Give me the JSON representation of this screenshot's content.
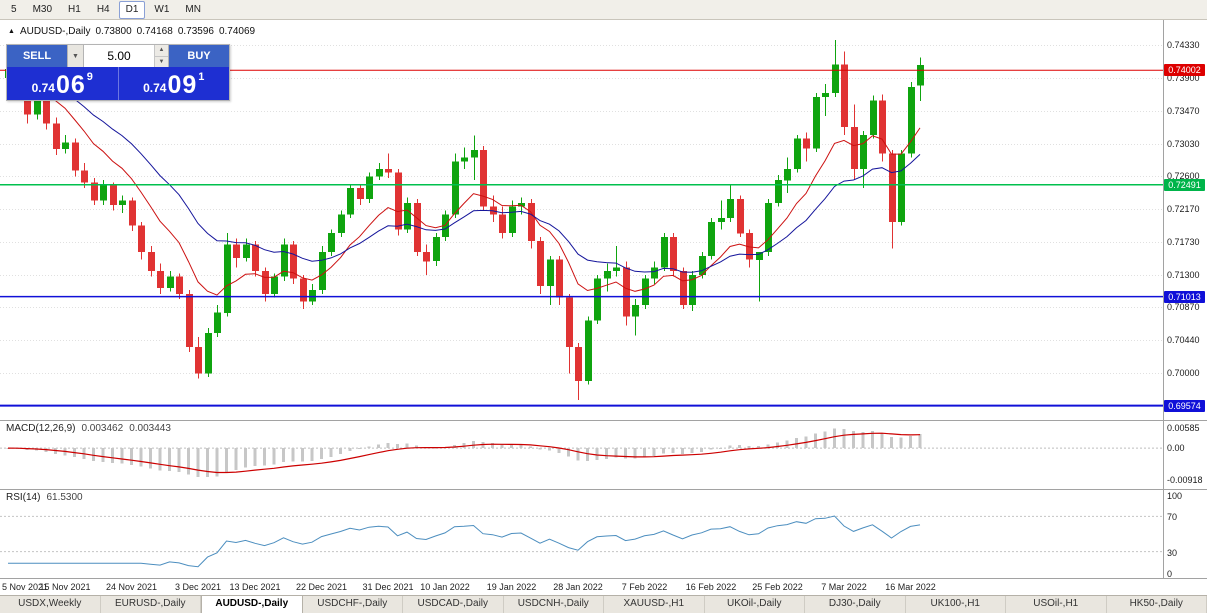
{
  "toolbar": {
    "timeframes": [
      {
        "label": "5",
        "active": false
      },
      {
        "label": "M30",
        "active": false
      },
      {
        "label": "H1",
        "active": false
      },
      {
        "label": "H4",
        "active": false
      },
      {
        "label": "D1",
        "active": true
      },
      {
        "label": "W1",
        "active": false
      },
      {
        "label": "MN",
        "active": false
      }
    ]
  },
  "chart_header": {
    "marker": "▲",
    "symbol": "AUDUSD-,Daily",
    "open": "0.73800",
    "high": "0.74168",
    "low": "0.73596",
    "close": "0.74069"
  },
  "trade_panel": {
    "sell_label": "SELL",
    "buy_label": "BUY",
    "volume": "5.00",
    "dropdown_icon": "▼",
    "spin_up": "▲",
    "spin_down": "▼",
    "sell_price": {
      "prefix": "0.74",
      "big": "06",
      "sup": "9"
    },
    "buy_price": {
      "prefix": "0.74",
      "big": "09",
      "sup": "1"
    }
  },
  "price_scale": {
    "ticks": [
      "0.74330",
      "0.73900",
      "0.73470",
      "0.73030",
      "0.72600",
      "0.72170",
      "0.71730",
      "0.71300",
      "0.70870",
      "0.70440",
      "0.70000"
    ],
    "badges": [
      {
        "value": "0.74002",
        "color": "#dd0000"
      },
      {
        "value": "0.72491",
        "color": "#00b44a"
      },
      {
        "value": "0.71013",
        "color": "#1010d8"
      },
      {
        "value": "0.69574",
        "color": "#1010d8"
      }
    ]
  },
  "indicators": {
    "macd": {
      "label": "MACD(12,26,9)",
      "value_main": "0.003462",
      "value_signal": "0.003443",
      "ticks": [
        "0.00585",
        "0.00",
        "-0.00918"
      ]
    },
    "rsi": {
      "label": "RSI(14)",
      "value": "61.5300",
      "ticks": [
        "100",
        "70",
        "30",
        "0"
      ],
      "levels": [
        70,
        30
      ]
    }
  },
  "time_axis": {
    "labels": [
      "5 Nov 2021",
      "15 Nov 2021",
      "24 Nov 2021",
      "3 Dec 2021",
      "13 Dec 2021",
      "22 Dec 2021",
      "31 Dec 2021",
      "10 Jan 2022",
      "19 Jan 2022",
      "28 Jan 2022",
      "7 Feb 2022",
      "16 Feb 2022",
      "25 Feb 2022",
      "7 Mar 2022",
      "16 Mar 2022"
    ],
    "indices": [
      0,
      6,
      13,
      20,
      26,
      33,
      40,
      46,
      53,
      60,
      67,
      74,
      81,
      88,
      95
    ]
  },
  "tabs": [
    {
      "label": "USDX,Weekly",
      "active": false
    },
    {
      "label": "EURUSD-,Daily",
      "active": false
    },
    {
      "label": "AUDUSD-,Daily",
      "active": true
    },
    {
      "label": "USDCHF-,Daily",
      "active": false
    },
    {
      "label": "USDCAD-,Daily",
      "active": false
    },
    {
      "label": "USDCNH-,Daily",
      "active": false
    },
    {
      "label": "XAUUSD-,H1",
      "active": false
    },
    {
      "label": "UKOil-,Daily",
      "active": false
    },
    {
      "label": "DJ30-,Daily",
      "active": false
    },
    {
      "label": "UK100-,H1",
      "active": false
    },
    {
      "label": "USOil-,H1",
      "active": false
    },
    {
      "label": "HK50-,Daily",
      "active": false
    }
  ],
  "chart_data": {
    "type": "candlestick",
    "symbol": "AUDUSD-",
    "timeframe": "Daily",
    "format": "ohlc",
    "y_range": [
      0.6941,
      0.746
    ],
    "candle_colors": {
      "up": "#0fa40f",
      "down": "#e03333"
    },
    "moving_averages": [
      {
        "period": 10,
        "color": "#cc1111"
      },
      {
        "period": 21,
        "color": "#15159b"
      }
    ],
    "overlays": [
      {
        "type": "hline",
        "price": 0.74002,
        "color": "#dd0000",
        "width": 1
      },
      {
        "type": "hline",
        "price": 0.72491,
        "color": "#00c04e",
        "width": 1.5
      },
      {
        "type": "hline",
        "price": 0.71013,
        "color": "#1010d8",
        "width": 1.5
      },
      {
        "type": "hline",
        "price": 0.69574,
        "color": "#1010d8",
        "width": 2
      }
    ],
    "macd": {
      "fast": 12,
      "slow": 26,
      "signal": 9,
      "current": 0.003462,
      "current_signal": 0.003443
    },
    "rsi": {
      "period": 14,
      "current": 61.53
    },
    "candles": [
      [
        0.739,
        0.7408,
        0.738,
        0.7402
      ],
      [
        0.7402,
        0.741,
        0.7372,
        0.738
      ],
      [
        0.738,
        0.7388,
        0.733,
        0.7342
      ],
      [
        0.7342,
        0.7372,
        0.7335,
        0.7368
      ],
      [
        0.7368,
        0.7375,
        0.7322,
        0.733
      ],
      [
        0.733,
        0.7338,
        0.7288,
        0.7296
      ],
      [
        0.7296,
        0.7315,
        0.729,
        0.7305
      ],
      [
        0.7305,
        0.731,
        0.726,
        0.7268
      ],
      [
        0.7268,
        0.7278,
        0.7245,
        0.7252
      ],
      [
        0.7252,
        0.7258,
        0.7222,
        0.7228
      ],
      [
        0.7228,
        0.7255,
        0.7222,
        0.7248
      ],
      [
        0.7248,
        0.7252,
        0.7215,
        0.7222
      ],
      [
        0.7222,
        0.7235,
        0.7212,
        0.7228
      ],
      [
        0.7228,
        0.7232,
        0.7188,
        0.7195
      ],
      [
        0.7195,
        0.72,
        0.715,
        0.716
      ],
      [
        0.716,
        0.7168,
        0.7128,
        0.7135
      ],
      [
        0.7135,
        0.7145,
        0.7105,
        0.7113
      ],
      [
        0.7113,
        0.7135,
        0.7108,
        0.7128
      ],
      [
        0.7128,
        0.7132,
        0.7098,
        0.7105
      ],
      [
        0.7105,
        0.711,
        0.7028,
        0.7035
      ],
      [
        0.7035,
        0.7048,
        0.6993,
        0.7
      ],
      [
        0.7,
        0.706,
        0.6995,
        0.7053
      ],
      [
        0.7053,
        0.709,
        0.7048,
        0.708
      ],
      [
        0.708,
        0.7185,
        0.7075,
        0.717
      ],
      [
        0.717,
        0.7178,
        0.714,
        0.7152
      ],
      [
        0.7152,
        0.7178,
        0.7148,
        0.717
      ],
      [
        0.717,
        0.7175,
        0.7128,
        0.7135
      ],
      [
        0.7135,
        0.714,
        0.7095,
        0.7105
      ],
      [
        0.7105,
        0.7132,
        0.71,
        0.7128
      ],
      [
        0.7128,
        0.7178,
        0.7122,
        0.717
      ],
      [
        0.717,
        0.7175,
        0.7118,
        0.7125
      ],
      [
        0.7125,
        0.713,
        0.7085,
        0.7095
      ],
      [
        0.7095,
        0.7118,
        0.709,
        0.711
      ],
      [
        0.711,
        0.7168,
        0.7105,
        0.716
      ],
      [
        0.716,
        0.719,
        0.7155,
        0.7185
      ],
      [
        0.7185,
        0.7215,
        0.718,
        0.721
      ],
      [
        0.721,
        0.725,
        0.7205,
        0.7245
      ],
      [
        0.7245,
        0.725,
        0.7222,
        0.723
      ],
      [
        0.723,
        0.7265,
        0.7225,
        0.726
      ],
      [
        0.726,
        0.7278,
        0.7255,
        0.727
      ],
      [
        0.727,
        0.729,
        0.7258,
        0.7265
      ],
      [
        0.7265,
        0.727,
        0.7182,
        0.719
      ],
      [
        0.719,
        0.7232,
        0.7185,
        0.7225
      ],
      [
        0.7225,
        0.723,
        0.7155,
        0.716
      ],
      [
        0.716,
        0.717,
        0.713,
        0.7148
      ],
      [
        0.7148,
        0.7185,
        0.7142,
        0.718
      ],
      [
        0.718,
        0.7215,
        0.7175,
        0.721
      ],
      [
        0.721,
        0.729,
        0.7205,
        0.728
      ],
      [
        0.728,
        0.7298,
        0.727,
        0.7285
      ],
      [
        0.7285,
        0.7314,
        0.7255,
        0.7295
      ],
      [
        0.7295,
        0.73,
        0.7215,
        0.722
      ],
      [
        0.722,
        0.7235,
        0.72,
        0.721
      ],
      [
        0.721,
        0.722,
        0.7178,
        0.7185
      ],
      [
        0.7185,
        0.7228,
        0.718,
        0.722
      ],
      [
        0.722,
        0.7232,
        0.721,
        0.7225
      ],
      [
        0.7225,
        0.723,
        0.7165,
        0.7175
      ],
      [
        0.7175,
        0.718,
        0.7105,
        0.7115
      ],
      [
        0.7115,
        0.7155,
        0.709,
        0.715
      ],
      [
        0.715,
        0.7155,
        0.709,
        0.71
      ],
      [
        0.71,
        0.7105,
        0.7,
        0.7035
      ],
      [
        0.7035,
        0.704,
        0.6965,
        0.699
      ],
      [
        0.699,
        0.7075,
        0.6985,
        0.707
      ],
      [
        0.707,
        0.713,
        0.7065,
        0.7125
      ],
      [
        0.7125,
        0.7145,
        0.7108,
        0.7135
      ],
      [
        0.7135,
        0.7168,
        0.7128,
        0.714
      ],
      [
        0.714,
        0.7148,
        0.7063,
        0.7075
      ],
      [
        0.7075,
        0.7098,
        0.705,
        0.709
      ],
      [
        0.709,
        0.713,
        0.7085,
        0.7125
      ],
      [
        0.7125,
        0.7148,
        0.7118,
        0.714
      ],
      [
        0.714,
        0.7185,
        0.7135,
        0.718
      ],
      [
        0.718,
        0.7185,
        0.7128,
        0.7135
      ],
      [
        0.7135,
        0.714,
        0.7085,
        0.709
      ],
      [
        0.709,
        0.7135,
        0.7082,
        0.713
      ],
      [
        0.713,
        0.716,
        0.7125,
        0.7155
      ],
      [
        0.7155,
        0.7205,
        0.715,
        0.72
      ],
      [
        0.72,
        0.7228,
        0.719,
        0.7205
      ],
      [
        0.7205,
        0.725,
        0.72,
        0.723
      ],
      [
        0.723,
        0.7235,
        0.718,
        0.7185
      ],
      [
        0.7185,
        0.719,
        0.714,
        0.715
      ],
      [
        0.715,
        0.716,
        0.7095,
        0.716
      ],
      [
        0.716,
        0.723,
        0.7155,
        0.7225
      ],
      [
        0.7225,
        0.7262,
        0.722,
        0.7255
      ],
      [
        0.7255,
        0.7285,
        0.7238,
        0.727
      ],
      [
        0.727,
        0.7315,
        0.7265,
        0.731
      ],
      [
        0.731,
        0.7318,
        0.728,
        0.7297
      ],
      [
        0.7297,
        0.737,
        0.7292,
        0.7365
      ],
      [
        0.7365,
        0.7382,
        0.734,
        0.737
      ],
      [
        0.737,
        0.744,
        0.7365,
        0.7408
      ],
      [
        0.7408,
        0.7425,
        0.7315,
        0.7325
      ],
      [
        0.7325,
        0.7355,
        0.7255,
        0.727
      ],
      [
        0.727,
        0.732,
        0.7245,
        0.7315
      ],
      [
        0.7315,
        0.7367,
        0.731,
        0.736
      ],
      [
        0.736,
        0.7368,
        0.728,
        0.729
      ],
      [
        0.729,
        0.7295,
        0.7165,
        0.72
      ],
      [
        0.72,
        0.7295,
        0.7195,
        0.729
      ],
      [
        0.729,
        0.7385,
        0.7285,
        0.7378
      ],
      [
        0.738,
        0.74168,
        0.73596,
        0.74069
      ]
    ]
  }
}
